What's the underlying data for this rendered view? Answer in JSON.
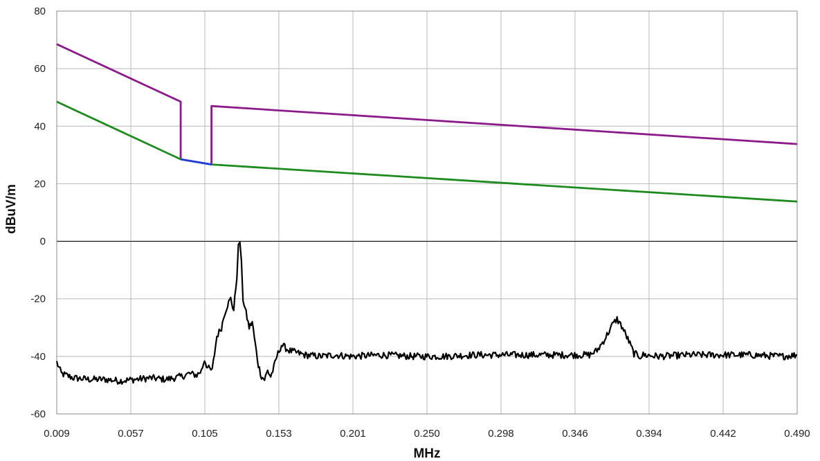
{
  "chart_data": {
    "type": "line",
    "xlabel": "MHz",
    "ylabel": "dBuV/m",
    "xlim": [
      0.009,
      0.49
    ],
    "ylim": [
      -60,
      80
    ],
    "x_tick_labels": [
      "0.009",
      "0.057",
      "0.105",
      "0.153",
      "0.201",
      "0.250",
      "0.298",
      "0.346",
      "0.394",
      "0.442",
      "0.490"
    ],
    "y_tick_labels": [
      "80",
      "60",
      "40",
      "20",
      "0",
      "-20",
      "-40",
      "-60"
    ],
    "y_ticks": [
      80,
      60,
      40,
      20,
      0,
      -20,
      -40,
      -60
    ],
    "grid": true,
    "colors": {
      "purple": "#8B1A8B",
      "green": "#1E8B1E",
      "blue": "#1F3FD8",
      "black": "#000000",
      "grid": "#B8B8B8",
      "zero_line": "#000000"
    },
    "series": [
      {
        "color": "purple",
        "x": [
          0.009,
          0.0895,
          0.0895,
          0.1095,
          0.1095,
          0.49
        ],
        "y": [
          68.5,
          48.5,
          28.5,
          26.7,
          47,
          33.8
        ]
      },
      {
        "color": "green",
        "x": [
          0.009,
          0.0895
        ],
        "y": [
          48.5,
          28.5
        ]
      },
      {
        "color": "blue",
        "x": [
          0.0895,
          0.1095
        ],
        "y": [
          28.5,
          26.7
        ]
      },
      {
        "color": "green",
        "x": [
          0.1095,
          0.49
        ],
        "y": [
          26.7,
          13.8
        ]
      },
      {
        "color": "black",
        "x": [
          0.009,
          0.012,
          0.02,
          0.03,
          0.04,
          0.05,
          0.06,
          0.07,
          0.08,
          0.09,
          0.095,
          0.1,
          0.103,
          0.105,
          0.107,
          0.11,
          0.113,
          0.116,
          0.118,
          0.12,
          0.122,
          0.124,
          0.126,
          0.127,
          0.128,
          0.129,
          0.13,
          0.132,
          0.134,
          0.136,
          0.138,
          0.14,
          0.142,
          0.144,
          0.146,
          0.148,
          0.15,
          0.152,
          0.155,
          0.16,
          0.17,
          0.18,
          0.19,
          0.2,
          0.22,
          0.24,
          0.26,
          0.28,
          0.3,
          0.32,
          0.34,
          0.355,
          0.36,
          0.365,
          0.37,
          0.373,
          0.376,
          0.38,
          0.384,
          0.388,
          0.39,
          0.4,
          0.42,
          0.44,
          0.46,
          0.48,
          0.49
        ],
        "y": [
          -42,
          -46,
          -47.5,
          -48,
          -48,
          -48.5,
          -48,
          -47.5,
          -48,
          -47,
          -46,
          -46.5,
          -45,
          -41,
          -44,
          -45,
          -33,
          -30,
          -25,
          -22,
          -20,
          -24,
          -12,
          -2,
          0,
          -8,
          -20,
          -25,
          -30,
          -28,
          -36,
          -43,
          -47,
          -48,
          -45,
          -47,
          -44,
          -40,
          -36,
          -38,
          -39.5,
          -40,
          -39.5,
          -40,
          -39.5,
          -40,
          -40,
          -39.5,
          -39.5,
          -39.5,
          -39.5,
          -39.5,
          -38,
          -34,
          -29,
          -27,
          -29.5,
          -34,
          -39,
          -40,
          -39.5,
          -40,
          -39.5,
          -39.5,
          -39.5,
          -40,
          -39.5
        ]
      }
    ]
  }
}
